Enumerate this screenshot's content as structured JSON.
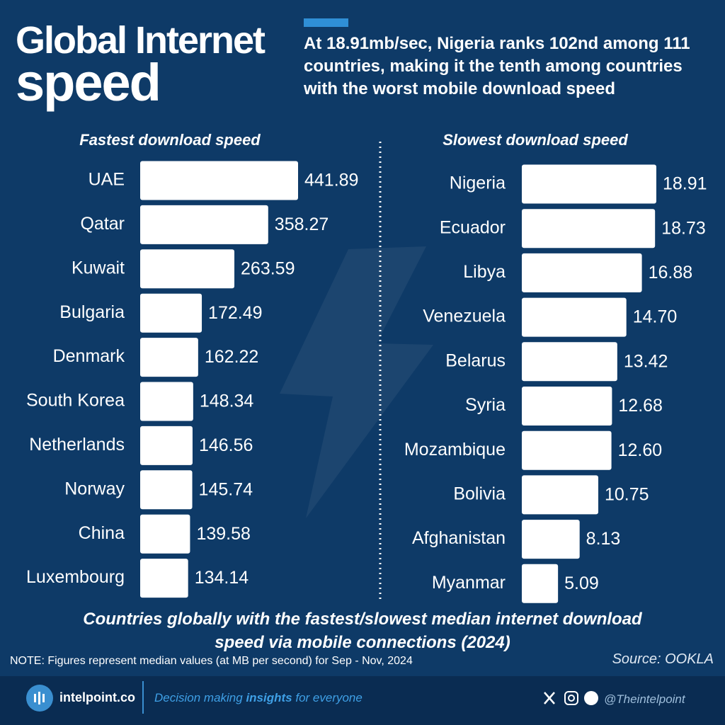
{
  "header": {
    "title": [
      "Global Internet",
      "speed"
    ],
    "subtitle": "At 18.91mb/sec, Nigeria ranks 102nd among 111 countries, making it the tenth among countries with the worst mobile download speed"
  },
  "chart_data": [
    {
      "type": "bar",
      "orientation": "horizontal",
      "title": "Fastest download speed",
      "color": "#ffffff",
      "categories": [
        "UAE",
        "Qatar",
        "Kuwait",
        "Bulgaria",
        "Denmark",
        "South Korea",
        "Netherlands",
        "Norway",
        "China",
        "Luxembourg"
      ],
      "values": [
        441.89,
        358.27,
        263.59,
        172.49,
        162.22,
        148.34,
        146.56,
        145.74,
        139.58,
        134.14
      ],
      "value_labels": [
        "441.89",
        "358.27",
        "263.59",
        "172.49",
        "162.22",
        "148.34",
        "146.56",
        "145.74",
        "139.58",
        "134.14"
      ]
    },
    {
      "type": "bar",
      "orientation": "horizontal",
      "title": "Slowest download speed",
      "color": "#ffffff",
      "categories": [
        "Nigeria",
        "Ecuador",
        "Libya",
        "Venezuela",
        "Belarus",
        "Syria",
        "Mozambique",
        "Bolivia",
        "Afghanistan",
        "Myanmar"
      ],
      "values": [
        18.91,
        18.73,
        16.88,
        14.7,
        13.42,
        12.68,
        12.6,
        10.75,
        8.13,
        5.09
      ],
      "value_labels": [
        "18.91",
        "18.73",
        "16.88",
        "14.70",
        "13.42",
        "12.68",
        "12.60",
        "10.75",
        "8.13",
        "5.09"
      ]
    }
  ],
  "caption": "Countries globally with the fastest/slowest median internet download speed via mobile connections (2024)",
  "note": "NOTE: Figures represent median values (at MB per second) for Sep - Nov, 2024",
  "source": "Source: OOKLA",
  "footer": {
    "brand": "intelpoint.co",
    "tagline": [
      "Decision making ",
      "insights",
      " for everyone"
    ],
    "handle": "@Theintelpoint"
  }
}
